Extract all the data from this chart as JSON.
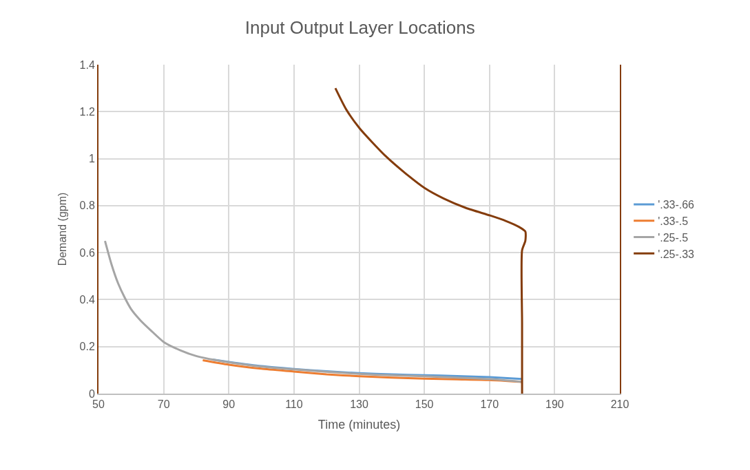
{
  "chart_data": {
    "type": "line",
    "title": "Input Output Layer Locations",
    "xlabel": "Time (minutes)",
    "ylabel": "Demand (gpm)",
    "xlim": [
      50,
      210
    ],
    "xticks": [
      50,
      70,
      90,
      110,
      130,
      150,
      170,
      190,
      210
    ],
    "ylim": [
      0,
      1.4
    ],
    "yticks": [
      0,
      0.2,
      0.4,
      0.6,
      0.8,
      1,
      1.2,
      1.4
    ],
    "grid": true,
    "legend": "right",
    "marker": "none",
    "line_style": "solid",
    "series": [
      {
        "name": "'.33-.66",
        "color": "#5b9bd5",
        "x": [
          85,
          90,
          100,
          110,
          120,
          130,
          140,
          150,
          160,
          170,
          180
        ],
        "values": [
          0.145,
          0.135,
          0.117,
          0.105,
          0.095,
          0.087,
          0.082,
          0.078,
          0.075,
          0.07,
          0.062
        ]
      },
      {
        "name": "'.33-.5",
        "color": "#ed7d31",
        "x": [
          82,
          90,
          100,
          110,
          120,
          130,
          140,
          150,
          160,
          170,
          180
        ],
        "values": [
          0.142,
          0.123,
          0.106,
          0.094,
          0.082,
          0.074,
          0.068,
          0.064,
          0.061,
          0.058,
          0.05
        ]
      },
      {
        "name": "'.25-.5",
        "color": "#a5a5a5",
        "x": [
          52,
          54,
          56,
          58,
          60,
          63,
          66,
          70,
          75,
          80,
          90,
          100,
          110,
          120,
          130,
          140,
          150,
          160,
          170,
          180
        ],
        "values": [
          0.65,
          0.55,
          0.47,
          0.41,
          0.36,
          0.31,
          0.27,
          0.22,
          0.185,
          0.16,
          0.133,
          0.115,
          0.103,
          0.093,
          0.084,
          0.078,
          0.074,
          0.068,
          0.062,
          0.05
        ]
      },
      {
        "name": "'.25-.33",
        "color": "#843c0c",
        "x": [
          122.7,
          126,
          130.1,
          134,
          138.2,
          144,
          150.1,
          156,
          162.8,
          170.2,
          175,
          179,
          181,
          181,
          180,
          180,
          180
        ],
        "values": [
          1.3,
          1.21,
          1.13,
          1.07,
          1.01,
          0.94,
          0.875,
          0.83,
          0.79,
          0.758,
          0.735,
          0.71,
          0.69,
          0.65,
          0.61,
          0.3,
          0
        ]
      }
    ]
  }
}
